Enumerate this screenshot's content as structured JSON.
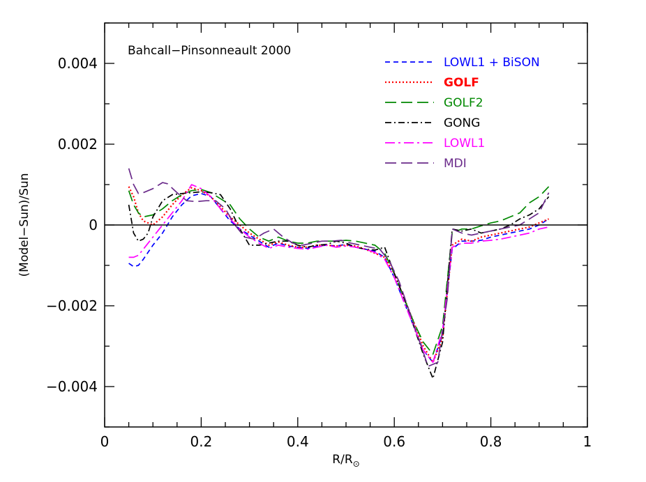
{
  "chart_data": {
    "type": "line",
    "title": "Bahcall−Pinsonneault 2000",
    "xlabel": "R/R",
    "xlabel_subscript_symbol": "⊙",
    "ylabel": "(Model−Sun)/Sun",
    "xlim": [
      0,
      1
    ],
    "ylim": [
      -0.005,
      0.005
    ],
    "xticks": [
      0,
      0.2,
      0.4,
      0.6,
      0.8,
      1
    ],
    "xtick_labels": [
      "0",
      "0.2",
      "0.4",
      "0.6",
      "0.8",
      "1"
    ],
    "yticks": [
      -0.004,
      -0.002,
      0,
      0.002,
      0.004
    ],
    "ytick_labels": [
      "−0.004",
      "−0.002",
      "0",
      "0.002",
      "0.004"
    ],
    "grid": false,
    "legend_position": "top-right",
    "zero_line": true,
    "series": [
      {
        "name": "LOWL1 + BiSON",
        "color": "#0000ff",
        "dash": "short-dash",
        "legend_bold": false,
        "points": [
          [
            0.05,
            -0.00095
          ],
          [
            0.06,
            -0.00103
          ],
          [
            0.07,
            -0.001
          ],
          [
            0.08,
            -0.00085
          ],
          [
            0.1,
            -0.0005
          ],
          [
            0.12,
            -0.0002
          ],
          [
            0.14,
            0.0002
          ],
          [
            0.16,
            0.0005
          ],
          [
            0.18,
            0.00072
          ],
          [
            0.2,
            0.00078
          ],
          [
            0.22,
            0.0007
          ],
          [
            0.24,
            0.0004
          ],
          [
            0.26,
            0.0001
          ],
          [
            0.28,
            -0.0001
          ],
          [
            0.3,
            -0.00025
          ],
          [
            0.32,
            -0.0004
          ],
          [
            0.34,
            -0.00055
          ],
          [
            0.36,
            -0.00045
          ],
          [
            0.38,
            -0.00052
          ],
          [
            0.4,
            -0.00055
          ],
          [
            0.42,
            -0.00058
          ],
          [
            0.44,
            -0.00052
          ],
          [
            0.46,
            -0.0005
          ],
          [
            0.48,
            -0.00052
          ],
          [
            0.5,
            -0.00048
          ],
          [
            0.52,
            -0.00055
          ],
          [
            0.54,
            -0.0006
          ],
          [
            0.56,
            -0.00065
          ],
          [
            0.58,
            -0.0008
          ],
          [
            0.6,
            -0.0013
          ],
          [
            0.62,
            -0.0019
          ],
          [
            0.64,
            -0.0025
          ],
          [
            0.66,
            -0.0031
          ],
          [
            0.68,
            -0.0034
          ],
          [
            0.7,
            -0.0027
          ],
          [
            0.72,
            -0.0006
          ],
          [
            0.74,
            -0.0004
          ],
          [
            0.76,
            -0.0004
          ],
          [
            0.78,
            -0.00038
          ],
          [
            0.8,
            -0.0003
          ],
          [
            0.82,
            -0.00025
          ],
          [
            0.84,
            -0.0002
          ],
          [
            0.86,
            -0.00015
          ],
          [
            0.88,
            -0.0001
          ],
          [
            0.9,
            0.0
          ],
          [
            0.92,
            0.00015
          ]
        ]
      },
      {
        "name": "GOLF",
        "color": "#ff0000",
        "dash": "dotted",
        "legend_bold": true,
        "points": [
          [
            0.05,
            0.00095
          ],
          [
            0.06,
            0.0007
          ],
          [
            0.07,
            0.0003
          ],
          [
            0.08,
            0.0001
          ],
          [
            0.1,
            0.0
          ],
          [
            0.12,
            0.0002
          ],
          [
            0.14,
            0.0005
          ],
          [
            0.16,
            0.00075
          ],
          [
            0.18,
            0.00092
          ],
          [
            0.2,
            0.00085
          ],
          [
            0.22,
            0.0007
          ],
          [
            0.24,
            0.00045
          ],
          [
            0.26,
            0.0002
          ],
          [
            0.28,
            0.0
          ],
          [
            0.3,
            -0.0002
          ],
          [
            0.32,
            -0.00035
          ],
          [
            0.34,
            -0.0005
          ],
          [
            0.36,
            -0.00042
          ],
          [
            0.38,
            -0.0005
          ],
          [
            0.4,
            -0.00055
          ],
          [
            0.42,
            -0.00055
          ],
          [
            0.44,
            -0.0005
          ],
          [
            0.46,
            -0.0005
          ],
          [
            0.48,
            -0.00052
          ],
          [
            0.5,
            -0.0005
          ],
          [
            0.52,
            -0.00052
          ],
          [
            0.54,
            -0.0006
          ],
          [
            0.56,
            -0.0007
          ],
          [
            0.58,
            -0.0008
          ],
          [
            0.6,
            -0.0012
          ],
          [
            0.62,
            -0.0018
          ],
          [
            0.64,
            -0.0024
          ],
          [
            0.66,
            -0.003
          ],
          [
            0.68,
            -0.0034
          ],
          [
            0.7,
            -0.0028
          ],
          [
            0.72,
            -0.0005
          ],
          [
            0.74,
            -0.00035
          ],
          [
            0.76,
            -0.0004
          ],
          [
            0.78,
            -0.0003
          ],
          [
            0.8,
            -0.00025
          ],
          [
            0.82,
            -0.0002
          ],
          [
            0.84,
            -0.00015
          ],
          [
            0.86,
            -0.0001
          ],
          [
            0.88,
            -5e-05
          ],
          [
            0.9,
            5e-05
          ],
          [
            0.92,
            0.00015
          ]
        ]
      },
      {
        "name": "GOLF2",
        "color": "#008800",
        "dash": "long-dash",
        "legend_bold": false,
        "points": [
          [
            0.05,
            0.00085
          ],
          [
            0.06,
            0.0005
          ],
          [
            0.07,
            0.0003
          ],
          [
            0.08,
            0.0002
          ],
          [
            0.1,
            0.00025
          ],
          [
            0.12,
            0.0004
          ],
          [
            0.14,
            0.0006
          ],
          [
            0.16,
            0.00075
          ],
          [
            0.18,
            0.00085
          ],
          [
            0.2,
            0.00088
          ],
          [
            0.22,
            0.0008
          ],
          [
            0.24,
            0.00065
          ],
          [
            0.26,
            0.0005
          ],
          [
            0.28,
            0.00015
          ],
          [
            0.3,
            -0.0001
          ],
          [
            0.32,
            -0.0003
          ],
          [
            0.34,
            -0.0004
          ],
          [
            0.36,
            -0.0003
          ],
          [
            0.38,
            -0.0004
          ],
          [
            0.4,
            -0.00045
          ],
          [
            0.42,
            -0.00045
          ],
          [
            0.44,
            -0.0004
          ],
          [
            0.46,
            -0.0004
          ],
          [
            0.48,
            -0.0004
          ],
          [
            0.5,
            -0.00038
          ],
          [
            0.52,
            -0.0004
          ],
          [
            0.54,
            -0.00045
          ],
          [
            0.56,
            -0.0005
          ],
          [
            0.58,
            -0.0007
          ],
          [
            0.6,
            -0.0012
          ],
          [
            0.62,
            -0.0018
          ],
          [
            0.64,
            -0.0024
          ],
          [
            0.66,
            -0.0029
          ],
          [
            0.68,
            -0.0032
          ],
          [
            0.7,
            -0.0025
          ],
          [
            0.72,
            -0.0002
          ],
          [
            0.74,
            -0.0001
          ],
          [
            0.76,
            -0.0001
          ],
          [
            0.78,
            -2e-05
          ],
          [
            0.8,
            5e-05
          ],
          [
            0.82,
            0.0001
          ],
          [
            0.84,
            0.0002
          ],
          [
            0.86,
            0.0003
          ],
          [
            0.88,
            0.00055
          ],
          [
            0.9,
            0.0007
          ],
          [
            0.92,
            0.00095
          ]
        ]
      },
      {
        "name": "GONG",
        "color": "#000000",
        "dash": "dash-dot",
        "legend_bold": false,
        "points": [
          [
            0.05,
            0.0005
          ],
          [
            0.06,
            -0.0002
          ],
          [
            0.07,
            -0.0004
          ],
          [
            0.08,
            -0.00035
          ],
          [
            0.09,
            -0.0002
          ],
          [
            0.1,
            0.0002
          ],
          [
            0.12,
            0.0006
          ],
          [
            0.14,
            0.00075
          ],
          [
            0.16,
            0.00078
          ],
          [
            0.18,
            0.0008
          ],
          [
            0.2,
            0.00082
          ],
          [
            0.22,
            0.0008
          ],
          [
            0.24,
            0.00075
          ],
          [
            0.26,
            0.0004
          ],
          [
            0.28,
            -0.0001
          ],
          [
            0.3,
            -0.0005
          ],
          [
            0.32,
            -0.0005
          ],
          [
            0.34,
            -0.00045
          ],
          [
            0.36,
            -0.0004
          ],
          [
            0.38,
            -0.0004
          ],
          [
            0.4,
            -0.0005
          ],
          [
            0.42,
            -0.00055
          ],
          [
            0.44,
            -0.0005
          ],
          [
            0.46,
            -0.00048
          ],
          [
            0.48,
            -0.0004
          ],
          [
            0.5,
            -0.00045
          ],
          [
            0.52,
            -0.00055
          ],
          [
            0.54,
            -0.0006
          ],
          [
            0.56,
            -0.00062
          ],
          [
            0.58,
            -0.00055
          ],
          [
            0.6,
            -0.0012
          ],
          [
            0.62,
            -0.0018
          ],
          [
            0.64,
            -0.0025
          ],
          [
            0.66,
            -0.0032
          ],
          [
            0.68,
            -0.0038
          ],
          [
            0.7,
            -0.0029
          ],
          [
            0.72,
            -0.0001
          ],
          [
            0.74,
            -0.00015
          ],
          [
            0.76,
            -0.0001
          ],
          [
            0.78,
            -0.0002
          ],
          [
            0.8,
            -0.00015
          ],
          [
            0.82,
            -0.0001
          ],
          [
            0.84,
            0.0
          ],
          [
            0.86,
            0.00015
          ],
          [
            0.88,
            0.00025
          ],
          [
            0.9,
            0.0004
          ],
          [
            0.92,
            0.0007
          ]
        ]
      },
      {
        "name": "LOWL1",
        "color": "#ff00ff",
        "dash": "dash-dot-long",
        "legend_bold": false,
        "points": [
          [
            0.05,
            -0.0008
          ],
          [
            0.06,
            -0.0008
          ],
          [
            0.07,
            -0.00075
          ],
          [
            0.08,
            -0.0006
          ],
          [
            0.1,
            -0.0003
          ],
          [
            0.12,
            0.0
          ],
          [
            0.14,
            0.0003
          ],
          [
            0.16,
            0.0006
          ],
          [
            0.18,
            0.001
          ],
          [
            0.2,
            0.0009
          ],
          [
            0.22,
            0.0007
          ],
          [
            0.24,
            0.0004
          ],
          [
            0.26,
            0.00015
          ],
          [
            0.28,
            -0.0001
          ],
          [
            0.3,
            -0.0003
          ],
          [
            0.32,
            -0.00045
          ],
          [
            0.34,
            -0.00058
          ],
          [
            0.36,
            -0.0005
          ],
          [
            0.38,
            -0.00055
          ],
          [
            0.4,
            -0.00058
          ],
          [
            0.42,
            -0.0006
          ],
          [
            0.44,
            -0.00055
          ],
          [
            0.46,
            -0.0005
          ],
          [
            0.48,
            -0.00055
          ],
          [
            0.5,
            -0.00052
          ],
          [
            0.52,
            -0.00055
          ],
          [
            0.54,
            -0.0006
          ],
          [
            0.56,
            -0.00068
          ],
          [
            0.58,
            -0.00085
          ],
          [
            0.6,
            -0.0013
          ],
          [
            0.62,
            -0.0019
          ],
          [
            0.64,
            -0.0025
          ],
          [
            0.66,
            -0.0031
          ],
          [
            0.68,
            -0.0034
          ],
          [
            0.7,
            -0.0026
          ],
          [
            0.72,
            -0.00055
          ],
          [
            0.74,
            -0.00045
          ],
          [
            0.76,
            -0.00045
          ],
          [
            0.78,
            -0.0004
          ],
          [
            0.8,
            -0.00038
          ],
          [
            0.82,
            -0.00035
          ],
          [
            0.84,
            -0.0003
          ],
          [
            0.86,
            -0.00025
          ],
          [
            0.88,
            -0.0002
          ],
          [
            0.9,
            -0.0001
          ],
          [
            0.92,
            -5e-05
          ]
        ]
      },
      {
        "name": "MDI",
        "color": "#6a2a8a",
        "dash": "long-dash",
        "legend_bold": false,
        "points": [
          [
            0.05,
            0.0014
          ],
          [
            0.06,
            0.001
          ],
          [
            0.07,
            0.00078
          ],
          [
            0.08,
            0.0008
          ],
          [
            0.1,
            0.0009
          ],
          [
            0.12,
            0.00105
          ],
          [
            0.13,
            0.00102
          ],
          [
            0.15,
            0.0008
          ],
          [
            0.17,
            0.0006
          ],
          [
            0.19,
            0.00058
          ],
          [
            0.21,
            0.0006
          ],
          [
            0.23,
            0.0006
          ],
          [
            0.25,
            0.0004
          ],
          [
            0.27,
            0.0
          ],
          [
            0.29,
            -0.0003
          ],
          [
            0.31,
            -0.00035
          ],
          [
            0.33,
            -0.0002
          ],
          [
            0.35,
            -0.0001
          ],
          [
            0.37,
            -0.0003
          ],
          [
            0.39,
            -0.00045
          ],
          [
            0.41,
            -0.0005
          ],
          [
            0.43,
            -0.00045
          ],
          [
            0.45,
            -0.0004
          ],
          [
            0.47,
            -0.0004
          ],
          [
            0.49,
            -0.00038
          ],
          [
            0.51,
            -0.00045
          ],
          [
            0.53,
            -0.0005
          ],
          [
            0.55,
            -0.00055
          ],
          [
            0.57,
            -0.0006
          ],
          [
            0.59,
            -0.0009
          ],
          [
            0.61,
            -0.0014
          ],
          [
            0.63,
            -0.0021
          ],
          [
            0.65,
            -0.0028
          ],
          [
            0.67,
            -0.0035
          ],
          [
            0.69,
            -0.0034
          ],
          [
            0.71,
            -0.0018
          ],
          [
            0.72,
            -0.0001
          ],
          [
            0.74,
            -0.0002
          ],
          [
            0.76,
            -0.00025
          ],
          [
            0.78,
            -0.0002
          ],
          [
            0.8,
            -0.00015
          ],
          [
            0.82,
            -0.0001
          ],
          [
            0.84,
            -5e-05
          ],
          [
            0.86,
            0.0
          ],
          [
            0.88,
            0.00015
          ],
          [
            0.9,
            0.0003
          ],
          [
            0.92,
            0.0008
          ]
        ]
      }
    ]
  }
}
